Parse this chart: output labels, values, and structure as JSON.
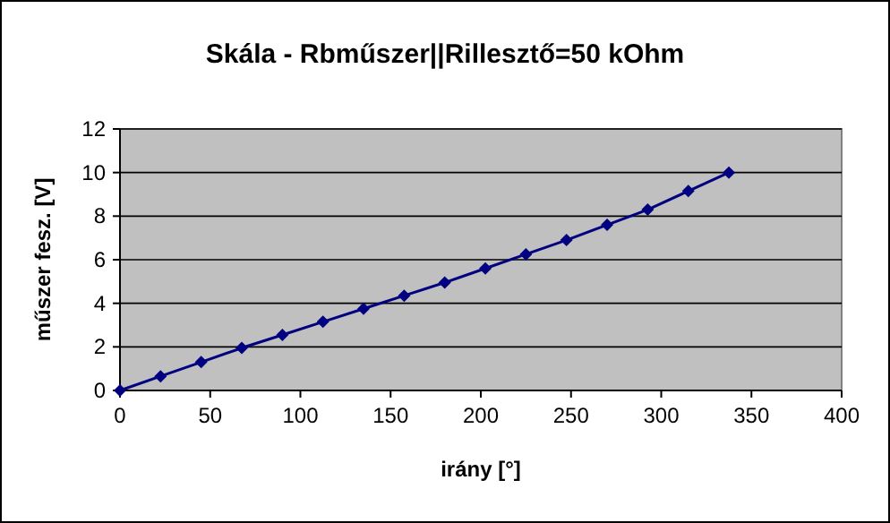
{
  "chart_data": {
    "type": "line",
    "title": "Skála - Rbműszer||Rillesztő=50 kOhm",
    "xlabel": "irány [°]",
    "ylabel": "műszer fesz. [V]",
    "x": [
      0,
      22.5,
      45,
      67.5,
      90,
      112.5,
      135,
      157.5,
      180,
      202.5,
      225,
      247.5,
      270,
      292.5,
      315,
      337.5
    ],
    "series": [
      {
        "color": "#000080",
        "values": [
          0,
          0.65,
          1.3,
          1.95,
          2.55,
          3.15,
          3.75,
          4.35,
          4.95,
          5.6,
          6.25,
          6.9,
          7.6,
          8.3,
          9.15,
          10
        ]
      }
    ],
    "xlim": [
      0,
      400
    ],
    "xticks": [
      0,
      50,
      100,
      150,
      200,
      250,
      300,
      350,
      400
    ],
    "ylim": [
      0,
      12
    ],
    "yticks": [
      0,
      2,
      4,
      6,
      8,
      10,
      12
    ],
    "grid": "y",
    "marker": "diamond",
    "line_style": "solid"
  }
}
